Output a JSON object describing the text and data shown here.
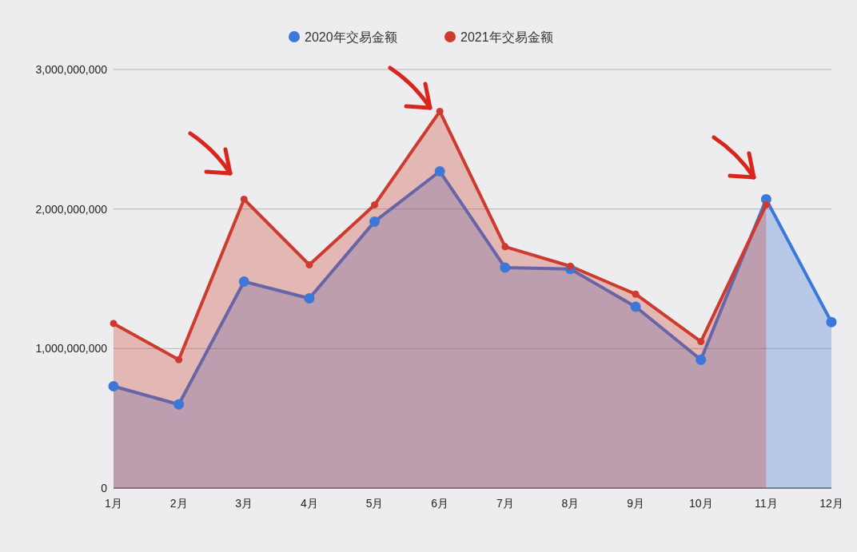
{
  "chart_data": {
    "type": "area",
    "categories": [
      "1月",
      "2月",
      "3月",
      "4月",
      "5月",
      "6月",
      "7月",
      "8月",
      "9月",
      "10月",
      "11月",
      "12月"
    ],
    "series": [
      {
        "name": "2020年交易金额",
        "color": "#3c78d8",
        "values": [
          730000000,
          600000000,
          1480000000,
          1360000000,
          1910000000,
          2270000000,
          1580000000,
          1570000000,
          1300000000,
          920000000,
          2070000000,
          1190000000
        ]
      },
      {
        "name": "2021年交易金额",
        "color": "#cc3b2e",
        "values": [
          1180000000,
          920000000,
          2070000000,
          1600000000,
          2030000000,
          2700000000,
          1730000000,
          1590000000,
          1390000000,
          1050000000,
          2030000000,
          null
        ]
      }
    ],
    "ylim": [
      0,
      3000000000
    ],
    "yticks": [
      0,
      {
        "value": 1000000000,
        "label": "1,000,000,000"
      },
      {
        "value": 2000000000,
        "label": "2,000,000,000"
      },
      {
        "value": 3000000000,
        "label": "3,000,000,000"
      }
    ],
    "grid": "y",
    "legend": "top",
    "marker": "circle"
  }
}
